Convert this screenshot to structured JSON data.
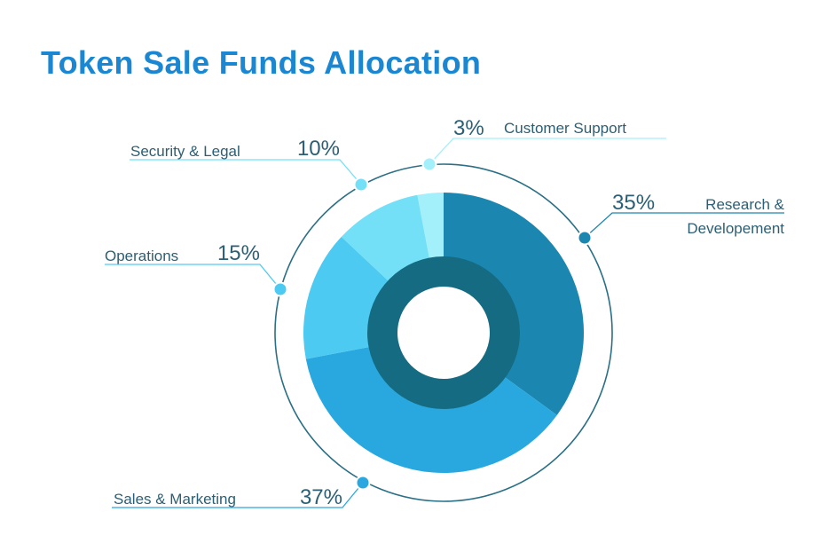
{
  "chart_data": {
    "type": "pie",
    "title": "Token Sale Funds Allocation",
    "slices": [
      {
        "label": "Research & Developement",
        "label_lines": [
          "Research &",
          "Developement"
        ],
        "pct_label": "35%",
        "value": 35,
        "color": "#1b87b1"
      },
      {
        "label": "Sales & Marketing",
        "label_lines": [
          "Sales & Marketing"
        ],
        "pct_label": "37%",
        "value": 37,
        "color": "#29a8e0"
      },
      {
        "label": "Operations",
        "label_lines": [
          "Operations"
        ],
        "pct_label": "15%",
        "value": 15,
        "color": "#4dcaf2"
      },
      {
        "label": "Security & Legal",
        "label_lines": [
          "Security & Legal"
        ],
        "pct_label": "10%",
        "value": 10,
        "color": "#73e0f7"
      },
      {
        "label": "Customer Support",
        "label_lines": [
          "Customer Support"
        ],
        "pct_label": "3%",
        "value": 3,
        "color": "#a3f0fa"
      }
    ],
    "colors": {
      "title": "#1b87d2",
      "text": "#2c5f74",
      "inner_ring": "#156b82",
      "outer_ring": "#2a6f86"
    }
  }
}
